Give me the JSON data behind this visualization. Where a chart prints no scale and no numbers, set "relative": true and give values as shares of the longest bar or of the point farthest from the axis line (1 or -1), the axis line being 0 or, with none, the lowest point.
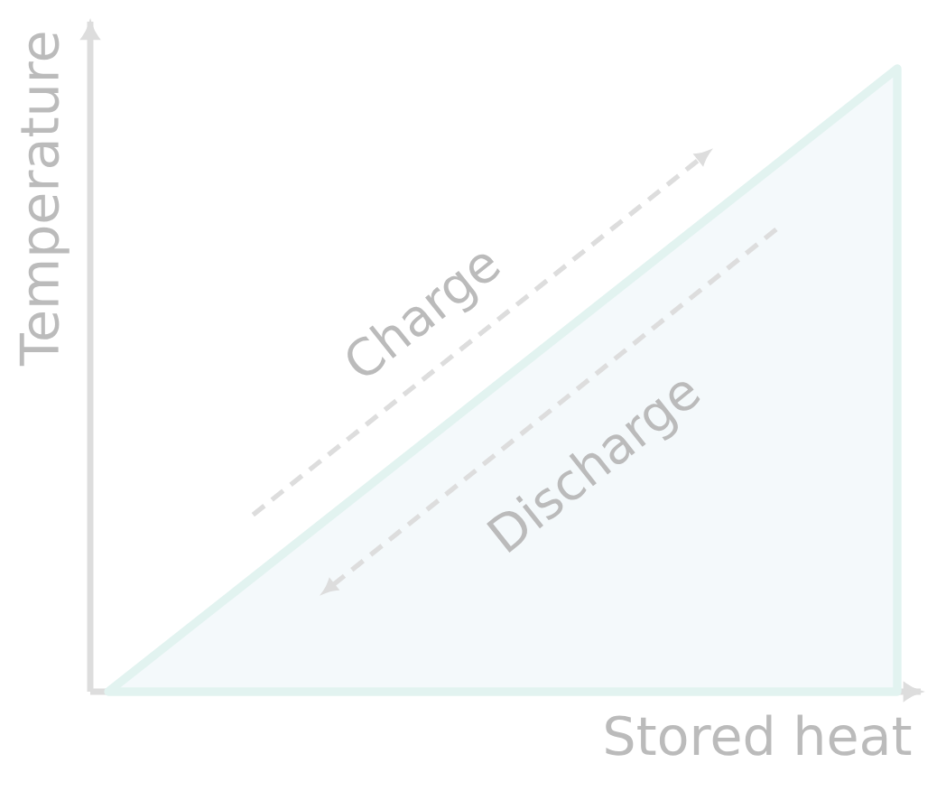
{
  "chart_data": {
    "type": "area",
    "categories": [
      null,
      null
    ],
    "values": [
      0,
      1
    ],
    "relative": true,
    "color": "#f4f9fb",
    "xlabel": "Stored heat",
    "ylabel": "Temperature",
    "annotations": [
      "Charge",
      "Discharge"
    ]
  }
}
